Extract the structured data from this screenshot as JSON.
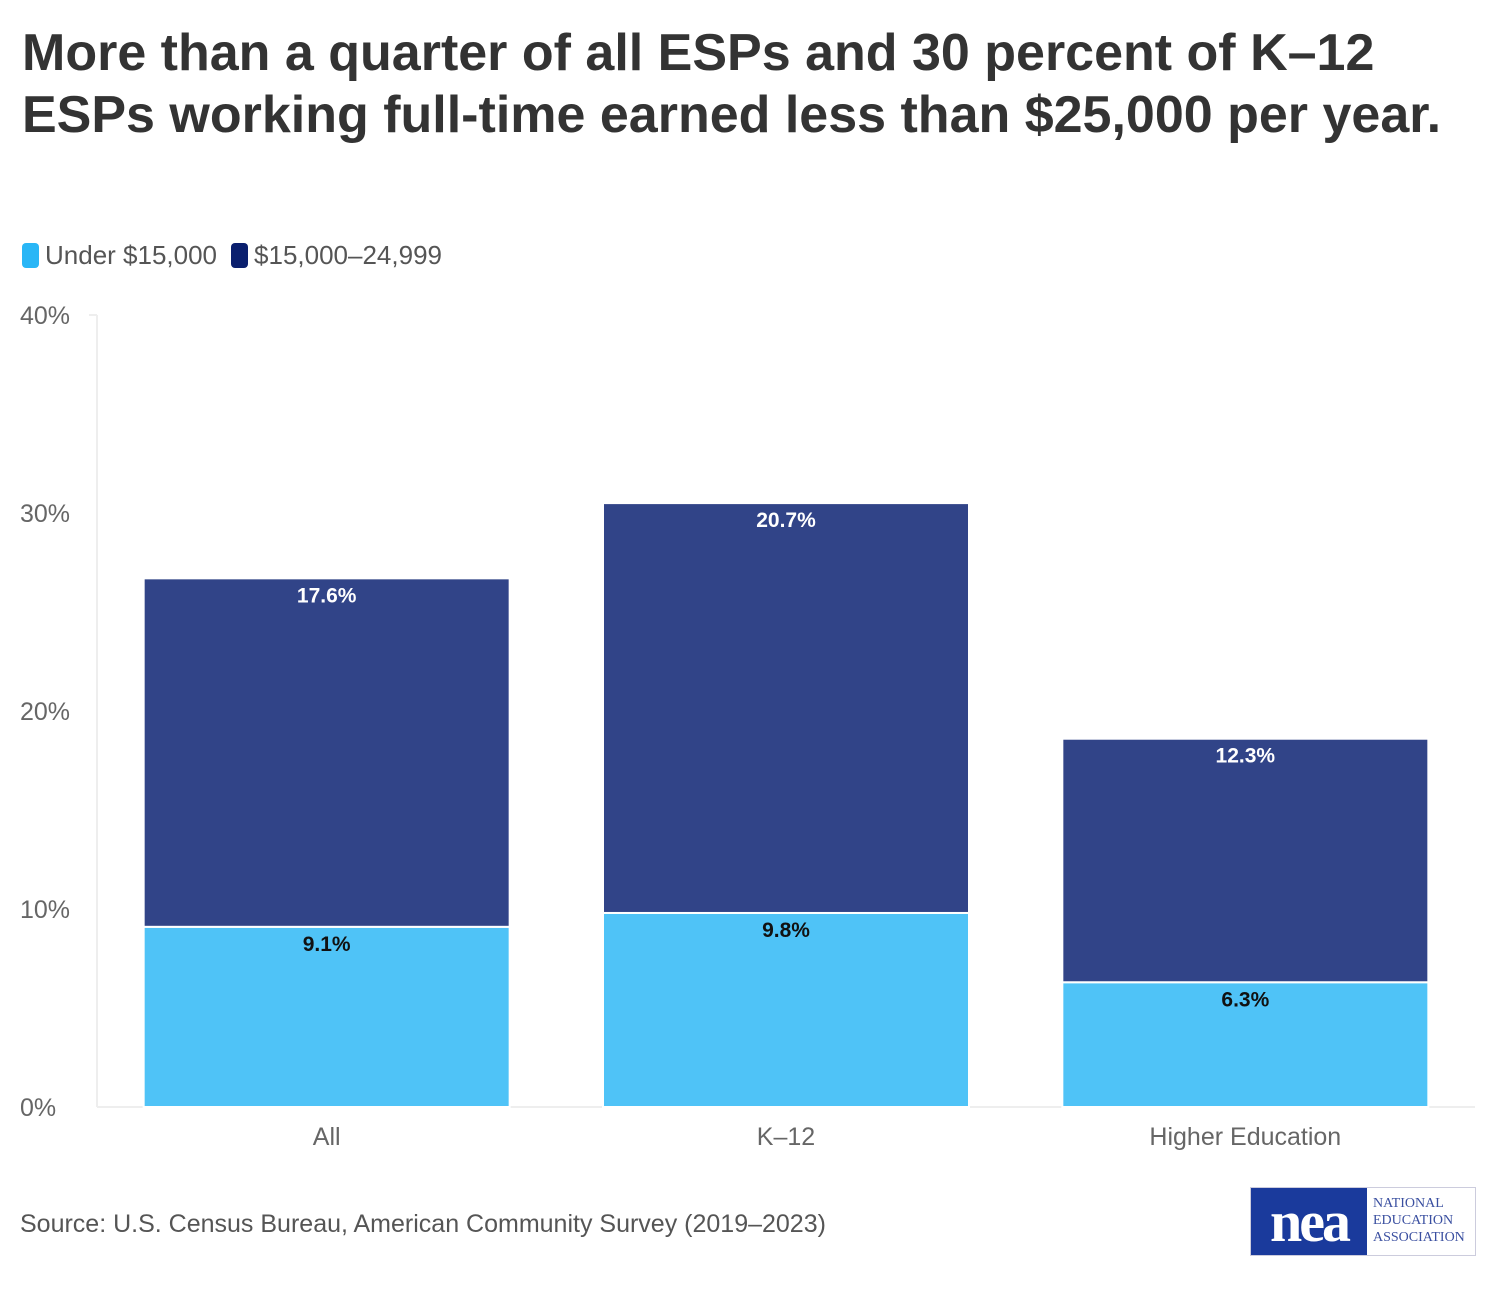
{
  "title": "More than a quarter of all ESPs and 30 percent of K–12 ESPs working full-time earned less than $25,000 per year.",
  "source": "Source: U.S. Census Bureau, American Community Survey (2019–2023)",
  "logo": {
    "mark": "nea",
    "text": [
      "NATIONAL",
      "EDUCATION",
      "ASSOCIATION"
    ]
  },
  "chart_data": {
    "type": "bar",
    "stacked": true,
    "categories": [
      "All",
      "K–12",
      "Higher Education"
    ],
    "series": [
      {
        "name": "Under $15,000",
        "values": [
          9.1,
          9.8,
          6.3
        ],
        "labels": [
          "9.1%",
          "9.8%",
          "6.3%"
        ],
        "color": "#4fc3f7",
        "legend_color": "#29b6f6"
      },
      {
        "name": "$15,000–24,999",
        "values": [
          17.6,
          20.7,
          12.3
        ],
        "labels": [
          "17.6%",
          "20.7%",
          "12.3%"
        ],
        "color": "#314488",
        "legend_color": "#0a1f6e"
      }
    ],
    "yticks": [
      "0%",
      "10%",
      "20%",
      "30%",
      "40%"
    ],
    "ylim": [
      0,
      40
    ],
    "grid": false,
    "legend": "top-left"
  }
}
